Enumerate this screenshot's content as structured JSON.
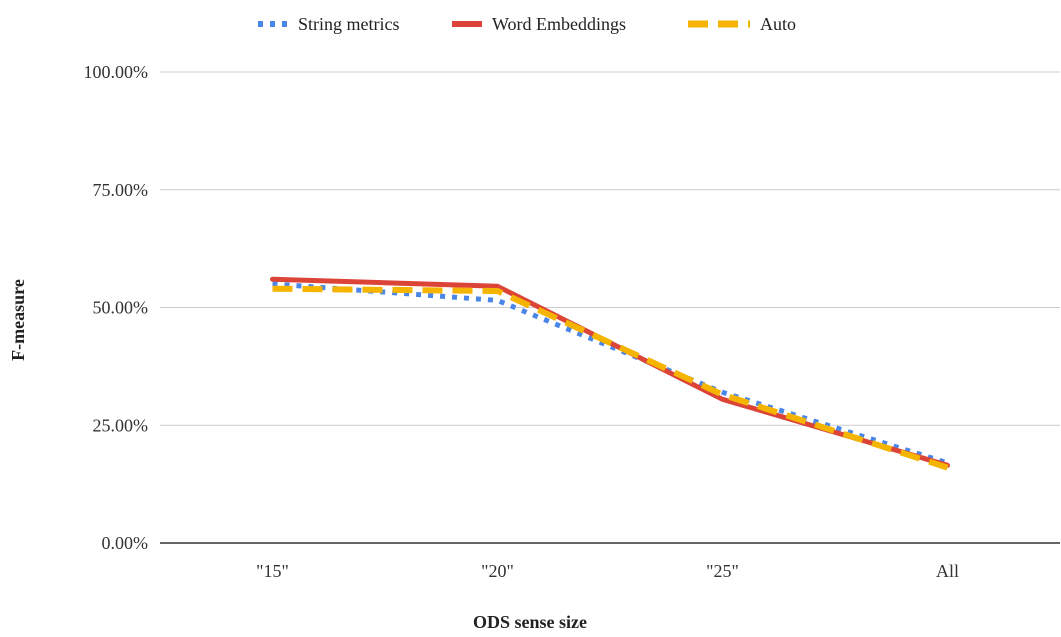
{
  "chart_data": {
    "type": "line",
    "categories": [
      "\"15\"",
      "\"20\"",
      "\"25\"",
      "All"
    ],
    "series": [
      {
        "name": "String metrics",
        "values": [
          55.0,
          51.5,
          32.0,
          17.0
        ],
        "color": "#4a86e8",
        "style": "dotted"
      },
      {
        "name": "Word Embeddings",
        "values": [
          56.0,
          54.5,
          30.5,
          16.5
        ],
        "color": "#dc4437",
        "style": "solid"
      },
      {
        "name": "Auto",
        "values": [
          54.0,
          53.5,
          31.5,
          16.0
        ],
        "color": "#f4b400",
        "style": "dashed"
      }
    ],
    "xlabel": "ODS sense size",
    "ylabel": "F-measure",
    "ylim": [
      0,
      100
    ],
    "yticks": [
      "0.00%",
      "25.00%",
      "50.00%",
      "75.00%",
      "100.00%"
    ],
    "ytick_values": [
      0,
      25,
      50,
      75,
      100
    ],
    "grid": true,
    "legend_position": "top-center"
  }
}
